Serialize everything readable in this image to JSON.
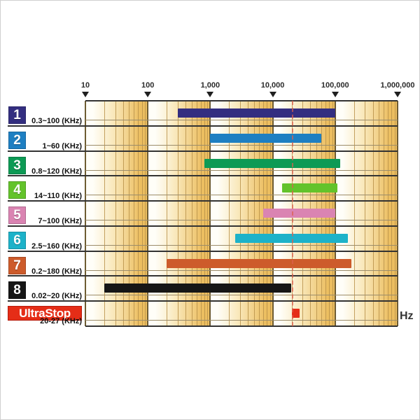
{
  "chart_data": {
    "type": "bar",
    "subtype": "horizontal-frequency-range",
    "x_axis": {
      "scale": "log",
      "unit": "Hz",
      "min": 10,
      "max": 1000000,
      "ticks": [
        {
          "value": 10,
          "label": "10"
        },
        {
          "value": 100,
          "label": "100"
        },
        {
          "value": 1000,
          "label": "1,000"
        },
        {
          "value": 10000,
          "label": "10,000"
        },
        {
          "value": 100000,
          "label": "100,000"
        },
        {
          "value": 1000000,
          "label": "1,000,000"
        }
      ]
    },
    "axis_unit_label": "Hz",
    "rows": [
      {
        "id": "1",
        "range_label": "0.3~100 (KHz)",
        "range_khz": [
          0.3,
          100
        ],
        "color": "#332e80"
      },
      {
        "id": "2",
        "range_label": "1~60 (KHz)",
        "range_khz": [
          1,
          60
        ],
        "color": "#1e7fc2"
      },
      {
        "id": "3",
        "range_label": "0.8~120 (KHz)",
        "range_khz": [
          0.8,
          120
        ],
        "color": "#0d9a55"
      },
      {
        "id": "4",
        "range_label": "14~110 (KHz)",
        "range_khz": [
          14,
          110
        ],
        "color": "#63c32b"
      },
      {
        "id": "5",
        "range_label": "7~100 (KHz)",
        "range_khz": [
          7,
          100
        ],
        "color": "#da84b2"
      },
      {
        "id": "6",
        "range_label": "2.5~160 (KHz)",
        "range_khz": [
          2.5,
          160
        ],
        "color": "#1db2c9"
      },
      {
        "id": "7",
        "range_label": "0.2~180 (KHz)",
        "range_khz": [
          0.2,
          180
        ],
        "color": "#cd5b2b"
      },
      {
        "id": "8",
        "range_label": "0.02~20 (KHz)",
        "range_khz": [
          0.02,
          20
        ],
        "color": "#161616"
      },
      {
        "id": "UltraStop",
        "wide_badge": true,
        "badge_text": "UltraStop",
        "range_label": "20-27 (KHz)",
        "range_khz": [
          20,
          27
        ],
        "color": "#e52d17"
      }
    ],
    "marker_line_hz": 21000,
    "legend_position": "left",
    "grid": true
  },
  "colors": {
    "paper_light": "#fffef8",
    "paper_mid": "#f9e8bb",
    "paper_dark": "#ecbe60",
    "line_minor": "#b8924a",
    "line_major": "#6e5c33",
    "row_line": "#333333",
    "row_thin_line": "#9b8c6b",
    "marker": "#df5f4e",
    "badge_border": "#b71c0c",
    "tick_color": "#1f1f1f"
  }
}
